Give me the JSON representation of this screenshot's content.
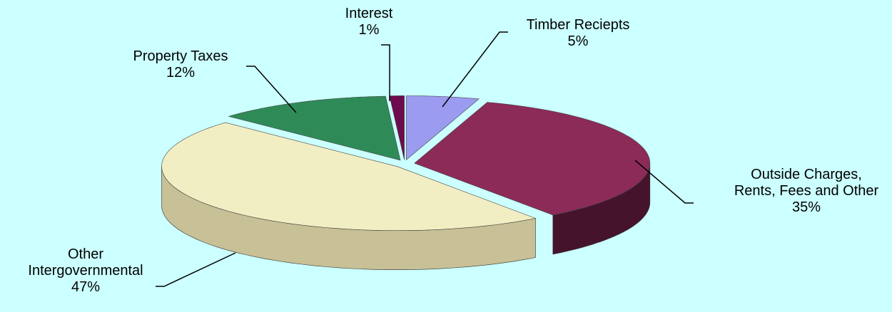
{
  "chart_data": {
    "type": "pie",
    "categories": [
      "Timber Reciepts",
      "Outside Charges, Rents, Fees and Other",
      "Other Intergovernmental",
      "Property Taxes",
      "Interest"
    ],
    "values": [
      5,
      35,
      47,
      12,
      1
    ],
    "value_labels": [
      "5%",
      "35%",
      "47%",
      "12%",
      "1%"
    ],
    "colors": [
      "#9b9bf0",
      "#8c2b58",
      "#f2eec4",
      "#2e8b57",
      "#6e0b4e"
    ],
    "side_colors": [
      "#6a6ac0",
      "#45142c",
      "#c8c096",
      "#1c5a37",
      "#3e052b"
    ]
  }
}
